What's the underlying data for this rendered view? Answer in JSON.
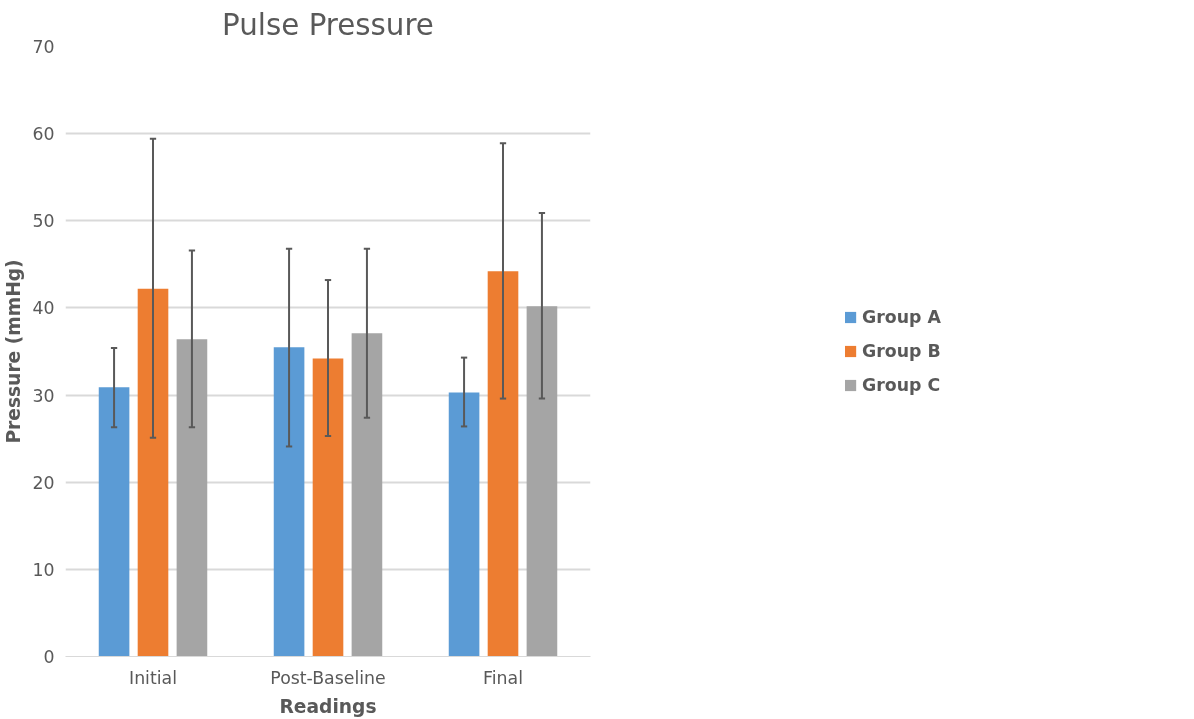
{
  "chart_data": {
    "type": "bar",
    "title": "Pulse Pressure",
    "xlabel": "Readings",
    "ylabel": "Pressure (mmHg)",
    "categories": [
      "Initial",
      "Post-Baseline",
      "Final"
    ],
    "series": [
      {
        "name": "Group A",
        "color": "#5b9bd5",
        "values": [
          30.9,
          35.5,
          30.3
        ],
        "errors": [
          [
            26.3,
            35.4
          ],
          [
            24.1,
            46.8
          ],
          [
            26.4,
            34.3
          ]
        ]
      },
      {
        "name": "Group B",
        "color": "#ed7d31",
        "values": [
          42.2,
          34.2,
          44.2
        ],
        "errors": [
          [
            25.1,
            59.4
          ],
          [
            25.3,
            43.2
          ],
          [
            29.6,
            58.9
          ]
        ]
      },
      {
        "name": "Group C",
        "color": "#a5a5a5",
        "values": [
          36.4,
          37.1,
          40.2
        ],
        "errors": [
          [
            26.3,
            46.6
          ],
          [
            27.4,
            46.8
          ],
          [
            29.6,
            50.9
          ]
        ]
      }
    ],
    "ylim": [
      0,
      70
    ],
    "yticks": [
      0,
      10,
      20,
      30,
      40,
      50,
      60,
      70
    ],
    "grid": "y",
    "legend": "right"
  }
}
